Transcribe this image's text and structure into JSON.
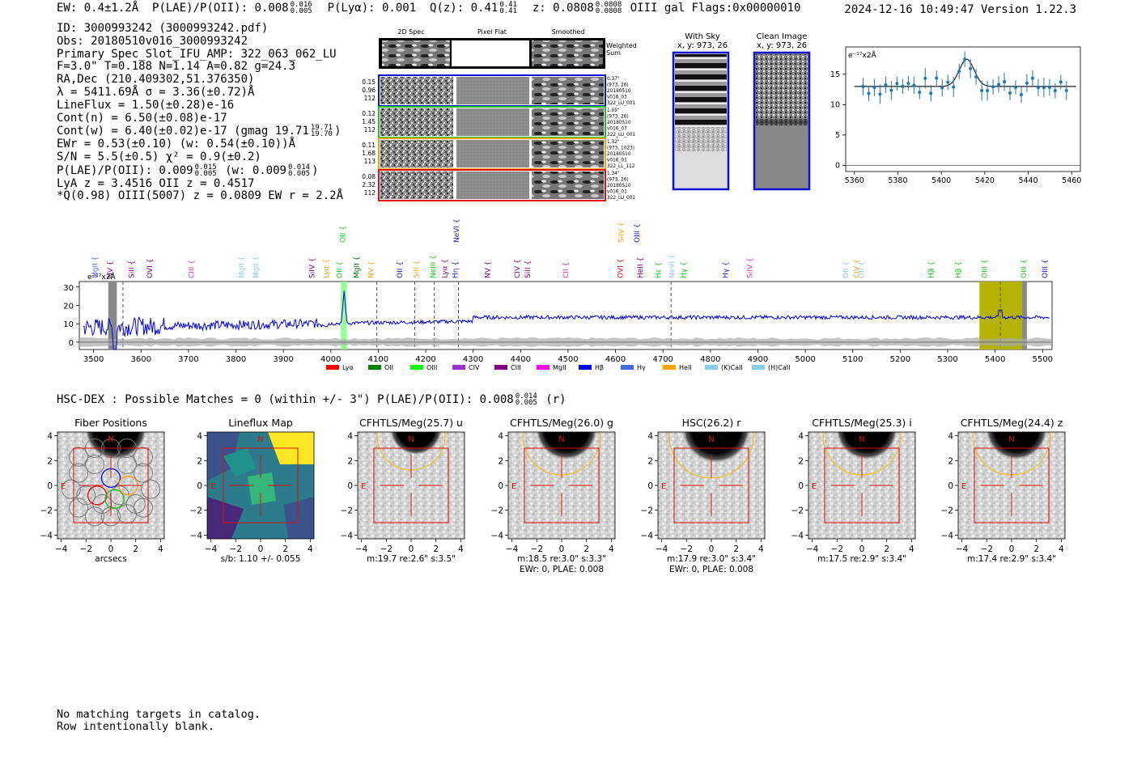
{
  "header": {
    "ew": "EW: 0.4±1.2Å",
    "plae_label": "P(LAE)/P(OII):",
    "plae_val": "0.008",
    "plae_hi": "0.016",
    "plae_lo": "0.005",
    "plya": "P(Lyα): 0.001",
    "qz_label": "Q(z):",
    "qz_val": "0.41",
    "qz_hi": "0.41",
    "qz_lo": "0.41",
    "z_label": "z:",
    "z_val": "0.0808",
    "z_hi": "0.0808",
    "z_lo": "0.0808",
    "z_tail": "OIII  gal  Flags:0x00000010",
    "timestamp": "2024-12-16 10:49:47  Version 1.22.3"
  },
  "info": {
    "id": "ID: 3000993242 (3000993242.pdf)",
    "obs": "Obs: 20180510v016_3000993242",
    "primary": "Primary Spec_Slot_IFU_AMP: 322_063_062_LU",
    "params": "F=3.0\"  T=0.188  N=1.14  A=0.82  g=24.3",
    "radec": "RA,Dec (210.409302,51.376350)",
    "lambda": "λ = 5411.69Å  σ = 3.36(±0.72)Å",
    "lineflux": "LineFlux = 1.50(±0.28)e-16",
    "contn": "Cont(n) = 6.50(±0.08)e-17",
    "contw": "Cont(w) = 6.40(±0.02)e-17 (gmag 19.71",
    "contw_hi": "19.71",
    "contw_lo": "19.70",
    "contw_end": ")",
    "ewr": "EWr = 0.53(±0.10) (w: 0.54(±0.10))Å",
    "sn": "S/N = 5.5(±0.5)  χ² = 0.9(±0.2)",
    "plae2": "P(LAE)/P(OII): 0.009",
    "plae2_hi": "0.015",
    "plae2_lo": "0.005",
    "plae2_w": "(w: 0.009",
    "plae2_w_hi": "0.014",
    "plae2_w_lo": "0.005",
    "plae2_end": ")",
    "lya": "LyA z = 3.4516  OII z = 0.4517",
    "q": "*Q(0.98) OIII(5007) z = 0.0809  EW r = 2.2Å"
  },
  "cutouts": {
    "col_titles": [
      "2D Spec",
      "Pixel Flat",
      "Smoothed"
    ],
    "weighted_sum": "Weighted Sum",
    "rows": [
      {
        "left": [
          "0.15",
          "0.96",
          "112"
        ],
        "right": [
          "0.37\"",
          "(973, 26)",
          "20180510",
          "v016_03",
          "322_LU_001"
        ],
        "color": "#1010d0"
      },
      {
        "left": [
          "0.12",
          "1.45",
          "112"
        ],
        "right": [
          "1.05\"",
          "(973, 26)",
          "20180510",
          "v016_07",
          "322_LU_001"
        ],
        "color": "#20c020"
      },
      {
        "left": [
          "0.11",
          "1.68",
          "113"
        ],
        "right": [
          "1.32\"",
          "(973, 1023)",
          "20180510",
          "v016_01",
          "322_LL_112"
        ],
        "color": "#f0a020"
      },
      {
        "left": [
          "0.08",
          "2.32",
          "112"
        ],
        "right": [
          "1.34\"",
          "(973, 26)",
          "20180510",
          "v016_01",
          "322_LU_001"
        ],
        "color": "#e01010"
      }
    ],
    "with_sky": "With Sky",
    "with_sky_xy": "x, y: 973, 26",
    "clean_image": "Clean Image",
    "clean_image_xy": "x, y: 973, 26"
  },
  "zoom_plot": {
    "ylabel": "e⁻¹⁷x2Å",
    "x_ticks": [
      "5360",
      "5380",
      "5400",
      "5420",
      "5440",
      "5460"
    ],
    "y_ticks": [
      "15",
      "10",
      "5",
      "0"
    ]
  },
  "full_spectrum": {
    "ylabel": "e⁻¹⁷x2Å",
    "y_ticks": [
      "30",
      "20",
      "10",
      "0"
    ],
    "x_ticks": [
      "3500",
      "3600",
      "3700",
      "3800",
      "3900",
      "4000",
      "4100",
      "4200",
      "4300",
      "4400",
      "4500",
      "4600",
      "4700",
      "4800",
      "4900",
      "5000",
      "5100",
      "5200",
      "5300",
      "5400",
      "5500"
    ],
    "line_labels": [
      {
        "t": "MgII",
        "w": 3503,
        "c": "#5a6ee0",
        "up": false
      },
      {
        "t": "NV",
        "w": 3535,
        "c": "#800080",
        "up": false
      },
      {
        "t": "SiII",
        "w": 3580,
        "c": "#800080",
        "up": false
      },
      {
        "t": "OVI",
        "w": 3618,
        "c": "#800080",
        "up": false
      },
      {
        "t": "CIII",
        "w": 3706,
        "c": "#cc33cc",
        "up": false
      },
      {
        "t": "MgII",
        "w": 3812,
        "c": "#87ceeb",
        "up": false
      },
      {
        "t": "MgII",
        "w": 3842,
        "c": "#87ceeb",
        "up": false
      },
      {
        "t": "SiIV",
        "w": 3960,
        "c": "#800080",
        "up": false
      },
      {
        "t": "Lyα",
        "w": 3990,
        "c": "#f0a020",
        "up": false
      },
      {
        "t": "OII",
        "w": 4025,
        "c": "#20c020",
        "up": true
      },
      {
        "t": "OII",
        "w": 4018,
        "c": "#20c020",
        "up": false
      },
      {
        "t": "MgII",
        "w": 4054,
        "c": "#006400",
        "up": false
      },
      {
        "t": "NV",
        "w": 4085,
        "c": "#f0a020",
        "up": false
      },
      {
        "t": "OII",
        "w": 4145,
        "c": "#2020c0",
        "up": false
      },
      {
        "t": "SiII",
        "w": 4180,
        "c": "#f0a020",
        "up": false
      },
      {
        "t": "NeIII",
        "w": 4215,
        "c": "#20c020",
        "up": false
      },
      {
        "t": "Lyα",
        "w": 4240,
        "c": "#800080",
        "up": false
      },
      {
        "t": "NeVI",
        "w": 4265,
        "c": "#2020c0",
        "up": true
      },
      {
        "t": "Hη",
        "w": 4262,
        "c": "#2020c0",
        "up": false
      },
      {
        "t": "NV",
        "w": 4330,
        "c": "#800080",
        "up": false
      },
      {
        "t": "CIV",
        "w": 4393,
        "c": "#800080",
        "up": false
      },
      {
        "t": "SiII",
        "w": 4415,
        "c": "#800080",
        "up": false
      },
      {
        "t": "CII",
        "w": 4495,
        "c": "#cc33cc",
        "up": false
      },
      {
        "t": "SiIV",
        "w": 4612,
        "c": "#f0a020",
        "up": true
      },
      {
        "t": "OIII",
        "w": 4645,
        "c": "#2020c0",
        "up": true
      },
      {
        "t": "OVI",
        "w": 4610,
        "c": "#e01010",
        "up": false
      },
      {
        "t": "HeII",
        "w": 4652,
        "c": "#800080",
        "up": false
      },
      {
        "t": "Hε",
        "w": 4690,
        "c": "#20c020",
        "up": false
      },
      {
        "t": "NeVI",
        "w": 4718,
        "c": "#87ceeb",
        "up": false
      },
      {
        "t": "Hγ",
        "w": 4743,
        "c": "#20c020",
        "up": false
      },
      {
        "t": "Hγ",
        "w": 4832,
        "c": "#2020c0",
        "up": false
      },
      {
        "t": "SiIV",
        "w": 4883,
        "c": "#cc33cc",
        "up": false
      },
      {
        "t": "OII",
        "w": 5085,
        "c": "#87ceeb",
        "up": false
      },
      {
        "t": "CIV",
        "w": 5108,
        "c": "#f0a020",
        "up": false
      },
      {
        "t": "OII",
        "w": 5118,
        "c": "#87ceeb",
        "up": false
      },
      {
        "t": "Hβ",
        "w": 5265,
        "c": "#20c020",
        "up": false
      },
      {
        "t": "Hβ",
        "w": 5322,
        "c": "#20c020",
        "up": false
      },
      {
        "t": "OIII",
        "w": 5378,
        "c": "#20c020",
        "up": false
      },
      {
        "t": "OIII",
        "w": 5460,
        "c": "#20c020",
        "up": false
      },
      {
        "t": "OIII",
        "w": 5505,
        "c": "#2020c0",
        "up": false
      }
    ],
    "legend": [
      {
        "label": "Lyα",
        "color": "#ff0000"
      },
      {
        "label": "OII",
        "color": "#008000"
      },
      {
        "label": "OIII",
        "color": "#00ff00"
      },
      {
        "label": "CIV",
        "color": "#9932cc"
      },
      {
        "label": "CIII",
        "color": "#800080"
      },
      {
        "label": "MgII",
        "color": "#ff00ff"
      },
      {
        "label": "Hβ",
        "color": "#0000ff"
      },
      {
        "label": "Hγ",
        "color": "#4169e1"
      },
      {
        "label": "HeII",
        "color": "#ffa500"
      },
      {
        "label": "(K)CaII",
        "color": "#87ceeb"
      },
      {
        "label": "(H)CaII",
        "color": "#87ceeb"
      }
    ]
  },
  "hsc": {
    "title": "HSC-DEX : Possible Matches = 0 (within +/- 3\")  P(LAE)/P(OII): 0.008",
    "hi": "0.014",
    "lo": "0.005",
    "tail": "(r)"
  },
  "panels": [
    {
      "title": "Fiber Positions",
      "cap1": "arcsecs",
      "cap2": ""
    },
    {
      "title": "Lineflux Map",
      "cap1": "s/b: 1.10 +/- 0.055",
      "cap2": ""
    },
    {
      "title": "CFHTLS/Meg(25.7) u",
      "cap1": "m:19.7  re:2.6\"  s:3.5\"",
      "cap2": ""
    },
    {
      "title": "CFHTLS/Meg(26.0) g",
      "cap1": "m:18.5  re:3.0\"  s:3.3\"",
      "cap2": "EWr: 0, PLAE: 0.008"
    },
    {
      "title": "HSC(26.2) r",
      "cap1": "m:17.9  re:3.0\"  s:3.4\"",
      "cap2": "EWr: 0, PLAE: 0.008"
    },
    {
      "title": "CFHTLS/Meg(25.3) i",
      "cap1": "m:17.5  re:2.9\"  s:3.4\"",
      "cap2": ""
    },
    {
      "title": "CFHTLS/Meg(24.4) z",
      "cap1": "m:17.4  re:2.9\"  s:3.4\"",
      "cap2": ""
    }
  ],
  "panel_ticks": {
    "y": [
      "4",
      "2",
      "0",
      "−2",
      "−4"
    ],
    "x": [
      "−4",
      "−2",
      "0",
      "2",
      "4"
    ],
    "n": "N",
    "e": "E"
  },
  "footer": {
    "line1": "No matching targets in catalog.",
    "line2": "Row intentionally blank."
  }
}
